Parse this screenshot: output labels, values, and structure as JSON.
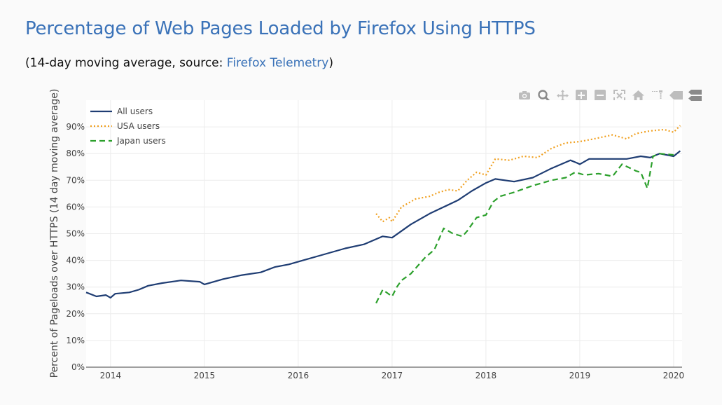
{
  "header": {
    "title": "Percentage of Web Pages Loaded by Firefox Using HTTPS",
    "subtitle_prefix": "(14-day moving average, source: ",
    "subtitle_link": "Firefox Telemetry",
    "subtitle_suffix": ")"
  },
  "modebar": [
    {
      "icon": "camera-icon"
    },
    {
      "icon": "zoom-icon"
    },
    {
      "icon": "pan-icon"
    },
    {
      "icon": "zoom-in-icon"
    },
    {
      "icon": "zoom-out-icon"
    },
    {
      "icon": "autoscale-icon"
    },
    {
      "icon": "home-icon"
    },
    {
      "icon": "spike-lines-icon"
    },
    {
      "icon": "hover-closest-icon"
    },
    {
      "icon": "hover-compare-icon"
    }
  ],
  "chart_data": {
    "type": "line",
    "title": "Percentage of Web Pages Loaded by Firefox Using HTTPS",
    "xlabel": "",
    "ylabel": "Percent of Pageloads over HTTPS (14 day moving average)",
    "xlim": [
      2013.74,
      2020.09
    ],
    "ylim": [
      0,
      1
    ],
    "x_ticks": [
      2014,
      2015,
      2016,
      2017,
      2018,
      2019,
      2020
    ],
    "x_tick_labels": [
      "2014",
      "2015",
      "2016",
      "2017",
      "2018",
      "2019",
      "2020"
    ],
    "y_ticks": [
      0,
      0.1,
      0.2,
      0.3,
      0.4,
      0.5,
      0.6,
      0.7,
      0.8,
      0.9
    ],
    "y_tick_labels": [
      "0%",
      "10%",
      "20%",
      "30%",
      "40%",
      "50%",
      "60%",
      "70%",
      "80%",
      "90%"
    ],
    "grid": true,
    "legend_position": "top-left",
    "series": [
      {
        "name": "All users",
        "color": "#1f3d73",
        "dash": "solid",
        "x": [
          2013.74,
          2013.85,
          2013.95,
          2014.0,
          2014.05,
          2014.2,
          2014.3,
          2014.4,
          2014.55,
          2014.75,
          2014.95,
          2015.0,
          2015.2,
          2015.4,
          2015.6,
          2015.75,
          2015.9,
          2016.05,
          2016.25,
          2016.5,
          2016.7,
          2016.8,
          2016.9,
          2017.0,
          2017.2,
          2017.4,
          2017.55,
          2017.7,
          2017.85,
          2018.0,
          2018.1,
          2018.3,
          2018.5,
          2018.7,
          2018.9,
          2018.97,
          2019.0,
          2019.1,
          2019.3,
          2019.5,
          2019.65,
          2019.75,
          2019.85,
          2020.0,
          2020.07
        ],
        "y": [
          0.28,
          0.265,
          0.27,
          0.26,
          0.275,
          0.28,
          0.29,
          0.305,
          0.315,
          0.325,
          0.32,
          0.31,
          0.33,
          0.345,
          0.355,
          0.375,
          0.385,
          0.4,
          0.42,
          0.445,
          0.46,
          0.475,
          0.49,
          0.485,
          0.535,
          0.575,
          0.6,
          0.625,
          0.66,
          0.69,
          0.705,
          0.695,
          0.71,
          0.745,
          0.775,
          0.765,
          0.76,
          0.78,
          0.78,
          0.78,
          0.79,
          0.785,
          0.8,
          0.79,
          0.81
        ]
      },
      {
        "name": "USA users",
        "color": "#f0a020",
        "dash": "dot",
        "x": [
          2016.83,
          2016.9,
          2016.97,
          2017.0,
          2017.1,
          2017.25,
          2017.4,
          2017.5,
          2017.6,
          2017.7,
          2017.8,
          2017.9,
          2018.0,
          2018.1,
          2018.25,
          2018.4,
          2018.55,
          2018.7,
          2018.85,
          2019.0,
          2019.15,
          2019.35,
          2019.5,
          2019.6,
          2019.75,
          2019.9,
          2020.0,
          2020.07
        ],
        "y": [
          0.575,
          0.545,
          0.56,
          0.545,
          0.6,
          0.63,
          0.64,
          0.655,
          0.665,
          0.66,
          0.7,
          0.73,
          0.72,
          0.78,
          0.775,
          0.79,
          0.785,
          0.82,
          0.84,
          0.845,
          0.855,
          0.87,
          0.855,
          0.875,
          0.885,
          0.89,
          0.88,
          0.905
        ]
      },
      {
        "name": "Japan users",
        "color": "#2ca02c",
        "dash": "dash",
        "x": [
          2016.83,
          2016.9,
          2017.0,
          2017.05,
          2017.1,
          2017.2,
          2017.35,
          2017.45,
          2017.55,
          2017.65,
          2017.75,
          2017.8,
          2017.9,
          2018.0,
          2018.08,
          2018.15,
          2018.3,
          2018.5,
          2018.7,
          2018.85,
          2018.95,
          2019.05,
          2019.2,
          2019.35,
          2019.45,
          2019.6,
          2019.65,
          2019.72,
          2019.78,
          2019.85,
          2020.0
        ],
        "y": [
          0.24,
          0.29,
          0.265,
          0.3,
          0.325,
          0.35,
          0.41,
          0.44,
          0.52,
          0.5,
          0.49,
          0.51,
          0.56,
          0.57,
          0.62,
          0.64,
          0.655,
          0.68,
          0.7,
          0.71,
          0.73,
          0.72,
          0.725,
          0.715,
          0.76,
          0.735,
          0.73,
          0.67,
          0.79,
          0.8,
          0.795
        ]
      }
    ]
  }
}
